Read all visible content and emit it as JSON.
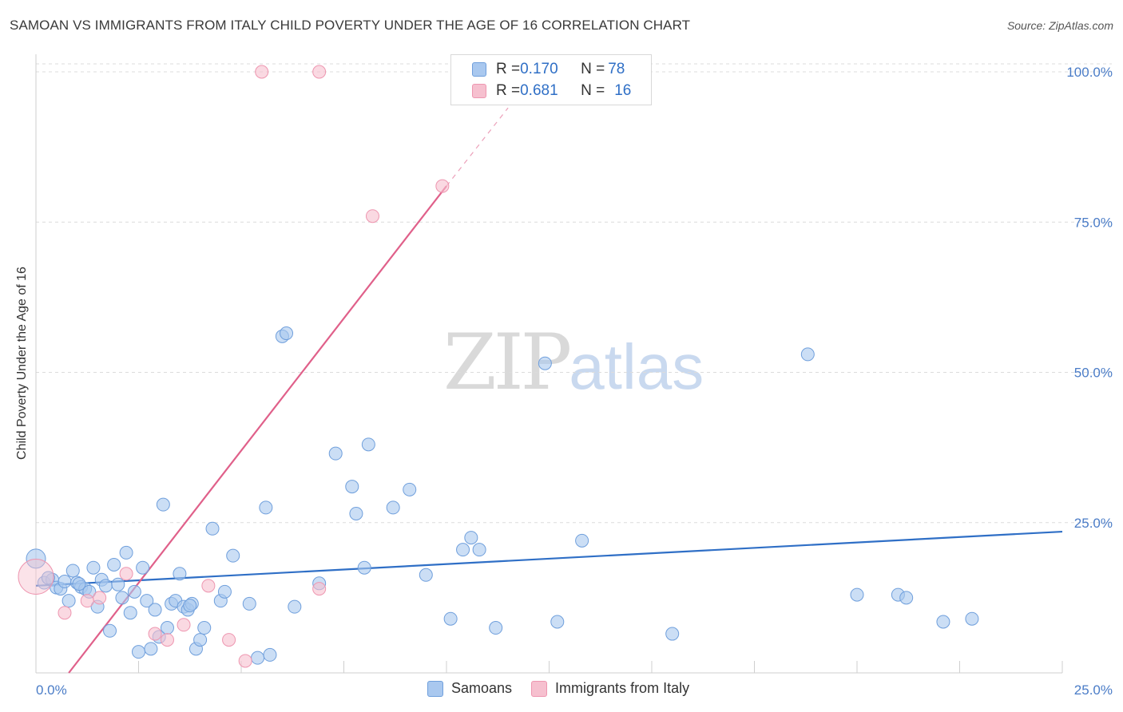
{
  "title": "SAMOAN VS IMMIGRANTS FROM ITALY CHILD POVERTY UNDER THE AGE OF 16 CORRELATION CHART",
  "source": "Source: ZipAtlas.com",
  "watermark": {
    "zip": "ZIP",
    "atlas": "atlas"
  },
  "legend": {
    "series": [
      {
        "r_label": "R = ",
        "r": "0.170",
        "n_label": "N = ",
        "n": "78"
      },
      {
        "r_label": "R = ",
        "r": "0.681",
        "n_label": "N = ",
        "n": "16"
      }
    ]
  },
  "bottom_legend": [
    "Samoans",
    "Immigrants from Italy"
  ],
  "colors": {
    "blue_fill": "#a9c8ef",
    "blue_stroke": "#6f9fdc",
    "blue_line": "#2f6fc6",
    "pink_fill": "#f6c0cf",
    "pink_stroke": "#ee96b0",
    "pink_line": "#e0608a"
  },
  "chart_data": {
    "type": "scatter",
    "title": "SAMOAN VS IMMIGRANTS FROM ITALY CHILD POVERTY UNDER THE AGE OF 16 CORRELATION CHART",
    "xlabel": "",
    "ylabel": "Child Poverty Under the Age of 16",
    "xlim": [
      0,
      25
    ],
    "ylim": [
      0,
      100
    ],
    "x_tick_labels": [
      "0.0%",
      "25.0%"
    ],
    "y_ticks": [
      25,
      50,
      75,
      100
    ],
    "y_tick_labels": [
      "25.0%",
      "50.0%",
      "75.0%",
      "100.0%"
    ],
    "series": [
      {
        "name": "Samoans",
        "r": 0.17,
        "n": 78,
        "trend": {
          "x": [
            0,
            25
          ],
          "y": [
            14.5,
            23.5
          ]
        },
        "points": [
          [
            0.0,
            19.0
          ],
          [
            0.2,
            15.0
          ],
          [
            0.4,
            15.5
          ],
          [
            0.5,
            14.2
          ],
          [
            0.6,
            14.0
          ],
          [
            0.7,
            15.2
          ],
          [
            0.8,
            12.0
          ],
          [
            0.9,
            17.0
          ],
          [
            1.0,
            15.0
          ],
          [
            1.1,
            14.3
          ],
          [
            1.2,
            14.0
          ],
          [
            1.3,
            13.5
          ],
          [
            1.4,
            17.5
          ],
          [
            1.5,
            11.0
          ],
          [
            1.6,
            15.5
          ],
          [
            1.7,
            14.5
          ],
          [
            1.8,
            7.0
          ],
          [
            1.9,
            18.0
          ],
          [
            2.1,
            12.5
          ],
          [
            2.2,
            20.0
          ],
          [
            2.3,
            10.0
          ],
          [
            2.4,
            13.5
          ],
          [
            2.5,
            3.5
          ],
          [
            2.6,
            17.5
          ],
          [
            2.7,
            12.0
          ],
          [
            2.8,
            4.0
          ],
          [
            2.9,
            10.5
          ],
          [
            3.0,
            6.0
          ],
          [
            3.1,
            28.0
          ],
          [
            3.2,
            7.5
          ],
          [
            3.3,
            11.5
          ],
          [
            3.4,
            12.0
          ],
          [
            3.5,
            16.5
          ],
          [
            3.6,
            11.0
          ],
          [
            3.7,
            10.5
          ],
          [
            3.8,
            11.5
          ],
          [
            3.9,
            4.0
          ],
          [
            4.0,
            5.5
          ],
          [
            4.1,
            7.5
          ],
          [
            4.3,
            24.0
          ],
          [
            4.5,
            12.0
          ],
          [
            4.6,
            13.5
          ],
          [
            4.8,
            19.5
          ],
          [
            5.2,
            11.5
          ],
          [
            5.4,
            2.5
          ],
          [
            5.6,
            27.5
          ],
          [
            5.7,
            3.0
          ],
          [
            6.0,
            56.0
          ],
          [
            6.1,
            56.5
          ],
          [
            6.3,
            11.0
          ],
          [
            7.3,
            36.5
          ],
          [
            7.7,
            31.0
          ],
          [
            7.8,
            26.5
          ],
          [
            8.0,
            17.5
          ],
          [
            8.1,
            38.0
          ],
          [
            8.7,
            27.5
          ],
          [
            9.1,
            30.5
          ],
          [
            10.1,
            9.0
          ],
          [
            10.4,
            20.5
          ],
          [
            10.6,
            22.5
          ],
          [
            10.8,
            20.5
          ],
          [
            11.2,
            7.5
          ],
          [
            12.4,
            51.5
          ],
          [
            12.7,
            8.5
          ],
          [
            13.3,
            22.0
          ],
          [
            15.5,
            6.5
          ],
          [
            18.8,
            53.0
          ],
          [
            20.0,
            13.0
          ],
          [
            21.0,
            13.0
          ],
          [
            21.2,
            12.5
          ],
          [
            22.1,
            8.5
          ],
          [
            22.8,
            9.0
          ],
          [
            0.3,
            15.8
          ],
          [
            1.05,
            14.8
          ],
          [
            2.0,
            14.7
          ],
          [
            3.75,
            11.2
          ],
          [
            6.9,
            14.9
          ],
          [
            9.5,
            16.3
          ]
        ]
      },
      {
        "name": "Immigrants from Italy",
        "r": 0.681,
        "n": 16,
        "trend": {
          "x": [
            0.8,
            10.0
          ],
          "y": [
            0.0,
            81.0
          ]
        },
        "trend_dashed": {
          "x": [
            10.0,
            11.5
          ],
          "y": [
            81.0,
            94.0
          ]
        },
        "points": [
          [
            0.0,
            16.0
          ],
          [
            0.7,
            10.0
          ],
          [
            1.25,
            12.0
          ],
          [
            1.55,
            12.5
          ],
          [
            2.2,
            16.5
          ],
          [
            2.9,
            6.5
          ],
          [
            3.2,
            5.5
          ],
          [
            3.6,
            8.0
          ],
          [
            4.2,
            14.5
          ],
          [
            4.7,
            5.5
          ],
          [
            5.1,
            2.0
          ],
          [
            5.5,
            100.0
          ],
          [
            6.9,
            14.0
          ],
          [
            6.9,
            100.0
          ],
          [
            8.2,
            76.0
          ],
          [
            9.9,
            81.0
          ]
        ]
      }
    ]
  }
}
